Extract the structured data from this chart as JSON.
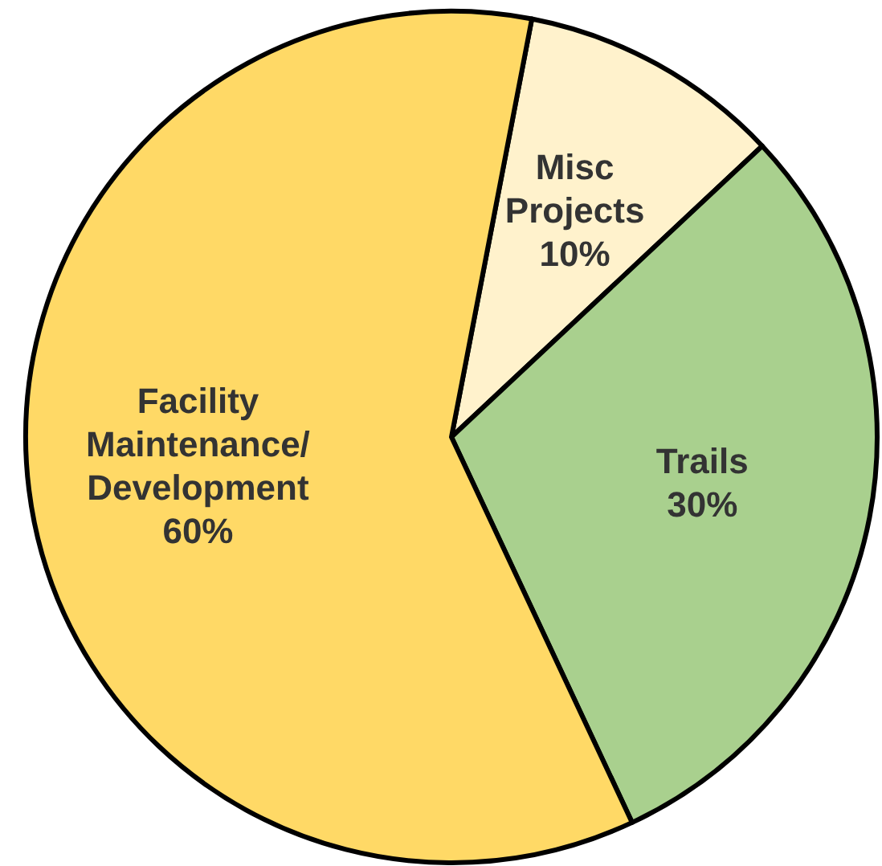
{
  "chart_data": {
    "type": "pie",
    "categories": [
      "Misc Projects",
      "Trails",
      "Facility Maintenance/ Development"
    ],
    "values": [
      10,
      30,
      60
    ],
    "colors": [
      "#fff2cc",
      "#a9d08e",
      "#ffd966"
    ],
    "value_labels": [
      "10%",
      "30%",
      "60%"
    ]
  }
}
